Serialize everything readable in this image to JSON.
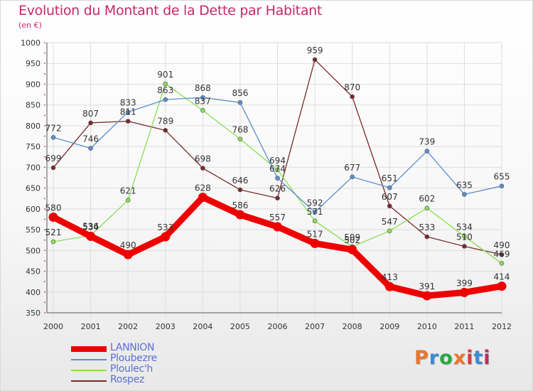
{
  "title": "Evolution du Montant de la Dette par Habitant",
  "subtitle": "(en €)",
  "logo": {
    "text": "Proxiti",
    "colors": [
      "#e8772e",
      "#3b8ad9",
      "#2aa843",
      "#e8772e",
      "#d93b3b",
      "#3b8ad9",
      "#c4286b"
    ]
  },
  "chart_data": {
    "type": "line",
    "title": "Evolution du Montant de la Dette par Habitant",
    "subtitle": "(en €)",
    "xlabel": "",
    "ylabel": "",
    "x": [
      "2000",
      "2001",
      "2002",
      "2003",
      "2004",
      "2005",
      "2006",
      "2007",
      "2008",
      "2009",
      "2010",
      "2011",
      "2012"
    ],
    "ylim": [
      350,
      1000
    ],
    "yticks": [
      350,
      400,
      450,
      500,
      550,
      600,
      650,
      700,
      750,
      800,
      850,
      900,
      950,
      1000
    ],
    "grid": true,
    "legend_position": "bottom-left",
    "series": [
      {
        "name": "LANNION",
        "color": "#ee0000",
        "values": [
          580,
          534,
          490,
          533,
          628,
          586,
          557,
          517,
          502,
          413,
          391,
          399,
          414
        ]
      },
      {
        "name": "Ploubezre",
        "color": "#5b8fd0",
        "values": [
          772,
          746,
          833,
          863,
          868,
          856,
          674,
          592,
          677,
          651,
          739,
          635,
          655
        ]
      },
      {
        "name": "Ploulec'h",
        "color": "#88dd55",
        "values": [
          521,
          536,
          621,
          901,
          837,
          768,
          694,
          571,
          509,
          547,
          602,
          534,
          469
        ]
      },
      {
        "name": "Rospez",
        "color": "#7a2a2a",
        "values": [
          699,
          807,
          811,
          789,
          698,
          646,
          626,
          959,
          870,
          607,
          533,
          510,
          490
        ]
      }
    ]
  }
}
